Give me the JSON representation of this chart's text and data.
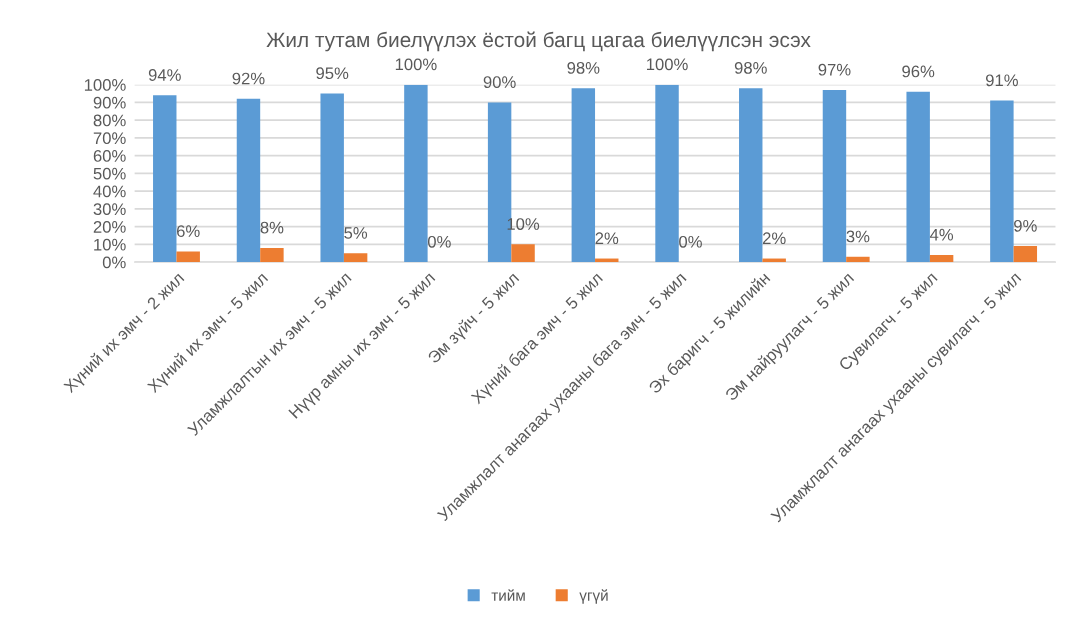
{
  "chart_data": {
    "type": "bar",
    "title": "Жил тутам биелүүлэх ёстой багц цагаа биелүүлсэн эсэх",
    "categories": [
      "Хүний их эмч - 2 жил",
      "Хүний их эмч - 5 жил",
      "Уламжлалтын их эмч - 5 жил",
      "Нүүр амны их эмч - 5 жил",
      "Эм зүйч - 5 жил",
      "Хүний бага эмч - 5 жил",
      "Уламжлалт анагаах ухааны бага эмч - 5 жил",
      "Эх баригч - 5 жилийн",
      "Эм найруулагч - 5 жил",
      "Сувилагч - 5 жил",
      "Уламжлалт анагаах ухааны сувилагч - 5 жил"
    ],
    "series": [
      {
        "name": "тийм",
        "color": "#5b9bd5",
        "values": [
          94,
          92,
          95,
          100,
          90,
          98,
          100,
          98,
          97,
          96,
          91
        ],
        "value_labels": [
          "94%",
          "92%",
          "95%",
          "100%",
          "90%",
          "98%",
          "100%",
          "98%",
          "97%",
          "96%",
          "91%"
        ]
      },
      {
        "name": "үгүй",
        "color": "#ed7d31",
        "values": [
          6,
          8,
          5,
          0,
          10,
          2,
          0,
          2,
          3,
          4,
          9
        ],
        "value_labels": [
          "6%",
          "8%",
          "5%",
          "0%",
          "10%",
          "2%",
          "0%",
          "2%",
          "3%",
          "4%",
          "9%"
        ]
      }
    ],
    "ylim": [
      0,
      100
    ],
    "yticks": [
      {
        "value": 0,
        "label": "0%"
      },
      {
        "value": 10,
        "label": "10%"
      },
      {
        "value": 20,
        "label": "20%"
      },
      {
        "value": 30,
        "label": "30%"
      },
      {
        "value": 40,
        "label": "40%"
      },
      {
        "value": 50,
        "label": "50%"
      },
      {
        "value": 60,
        "label": "60%"
      },
      {
        "value": 70,
        "label": "70%"
      },
      {
        "value": 80,
        "label": "80%"
      },
      {
        "value": 90,
        "label": "90%"
      },
      {
        "value": 100,
        "label": "100%"
      }
    ],
    "grid": "y",
    "legend": "bottom"
  }
}
